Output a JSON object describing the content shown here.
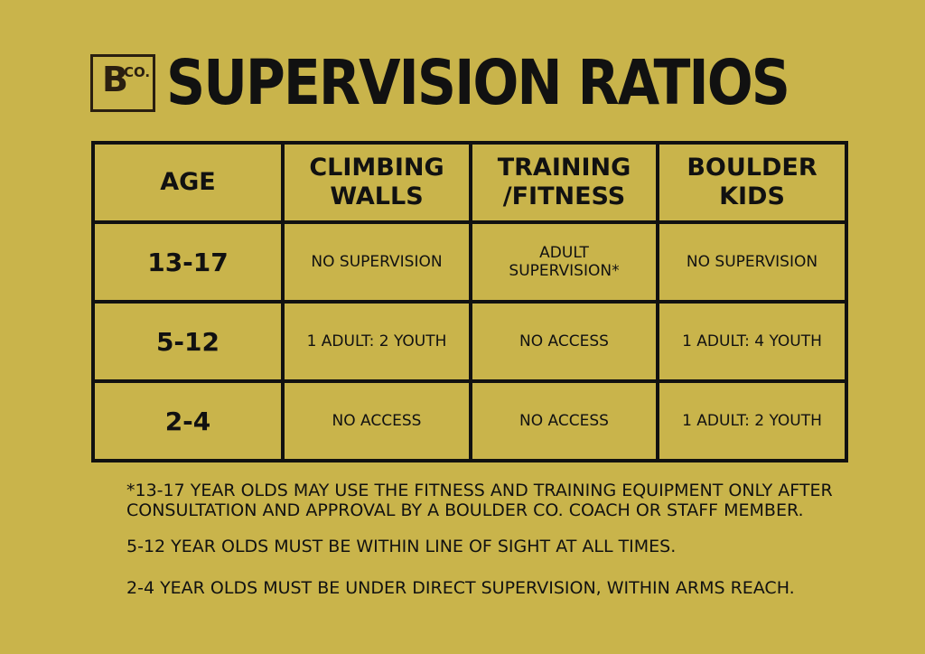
{
  "logo": {
    "letter": "B",
    "suffix": "CO."
  },
  "title": "SUPERVISION RATIOS",
  "table": {
    "headers": [
      "AGE",
      "CLIMBING\nWALLS",
      "TRAINING\n/FITNESS",
      "BOULDER\nKIDS"
    ],
    "rows": [
      {
        "age": "13-17",
        "climbing": "NO SUPERVISION",
        "training": "ADULT\nSUPERVISION*",
        "boulder": "NO SUPERVISION"
      },
      {
        "age": "5-12",
        "climbing": "1 ADULT: 2 YOUTH",
        "training": "NO ACCESS",
        "boulder": "1 ADULT: 4 YOUTH"
      },
      {
        "age": "2-4",
        "climbing": "NO ACCESS",
        "training": "NO ACCESS",
        "boulder": "1 ADULT: 2 YOUTH"
      }
    ]
  },
  "notes": [
    "*13-17 YEAR OLDS MAY USE THE FITNESS AND TRAINING EQUIPMENT ONLY AFTER CONSULTATION AND APPROVAL BY A BOULDER CO. COACH OR STAFF MEMBER.",
    "5-12 YEAR OLDS MUST BE WITHIN LINE OF SIGHT AT ALL TIMES.",
    "2-4 YEAR OLDS MUST BE UNDER DIRECT SUPERVISION, WITHIN ARMS REACH."
  ],
  "colors": {
    "background": "#c9b44b",
    "ink": "#111111",
    "logo": "#2a1f10"
  }
}
